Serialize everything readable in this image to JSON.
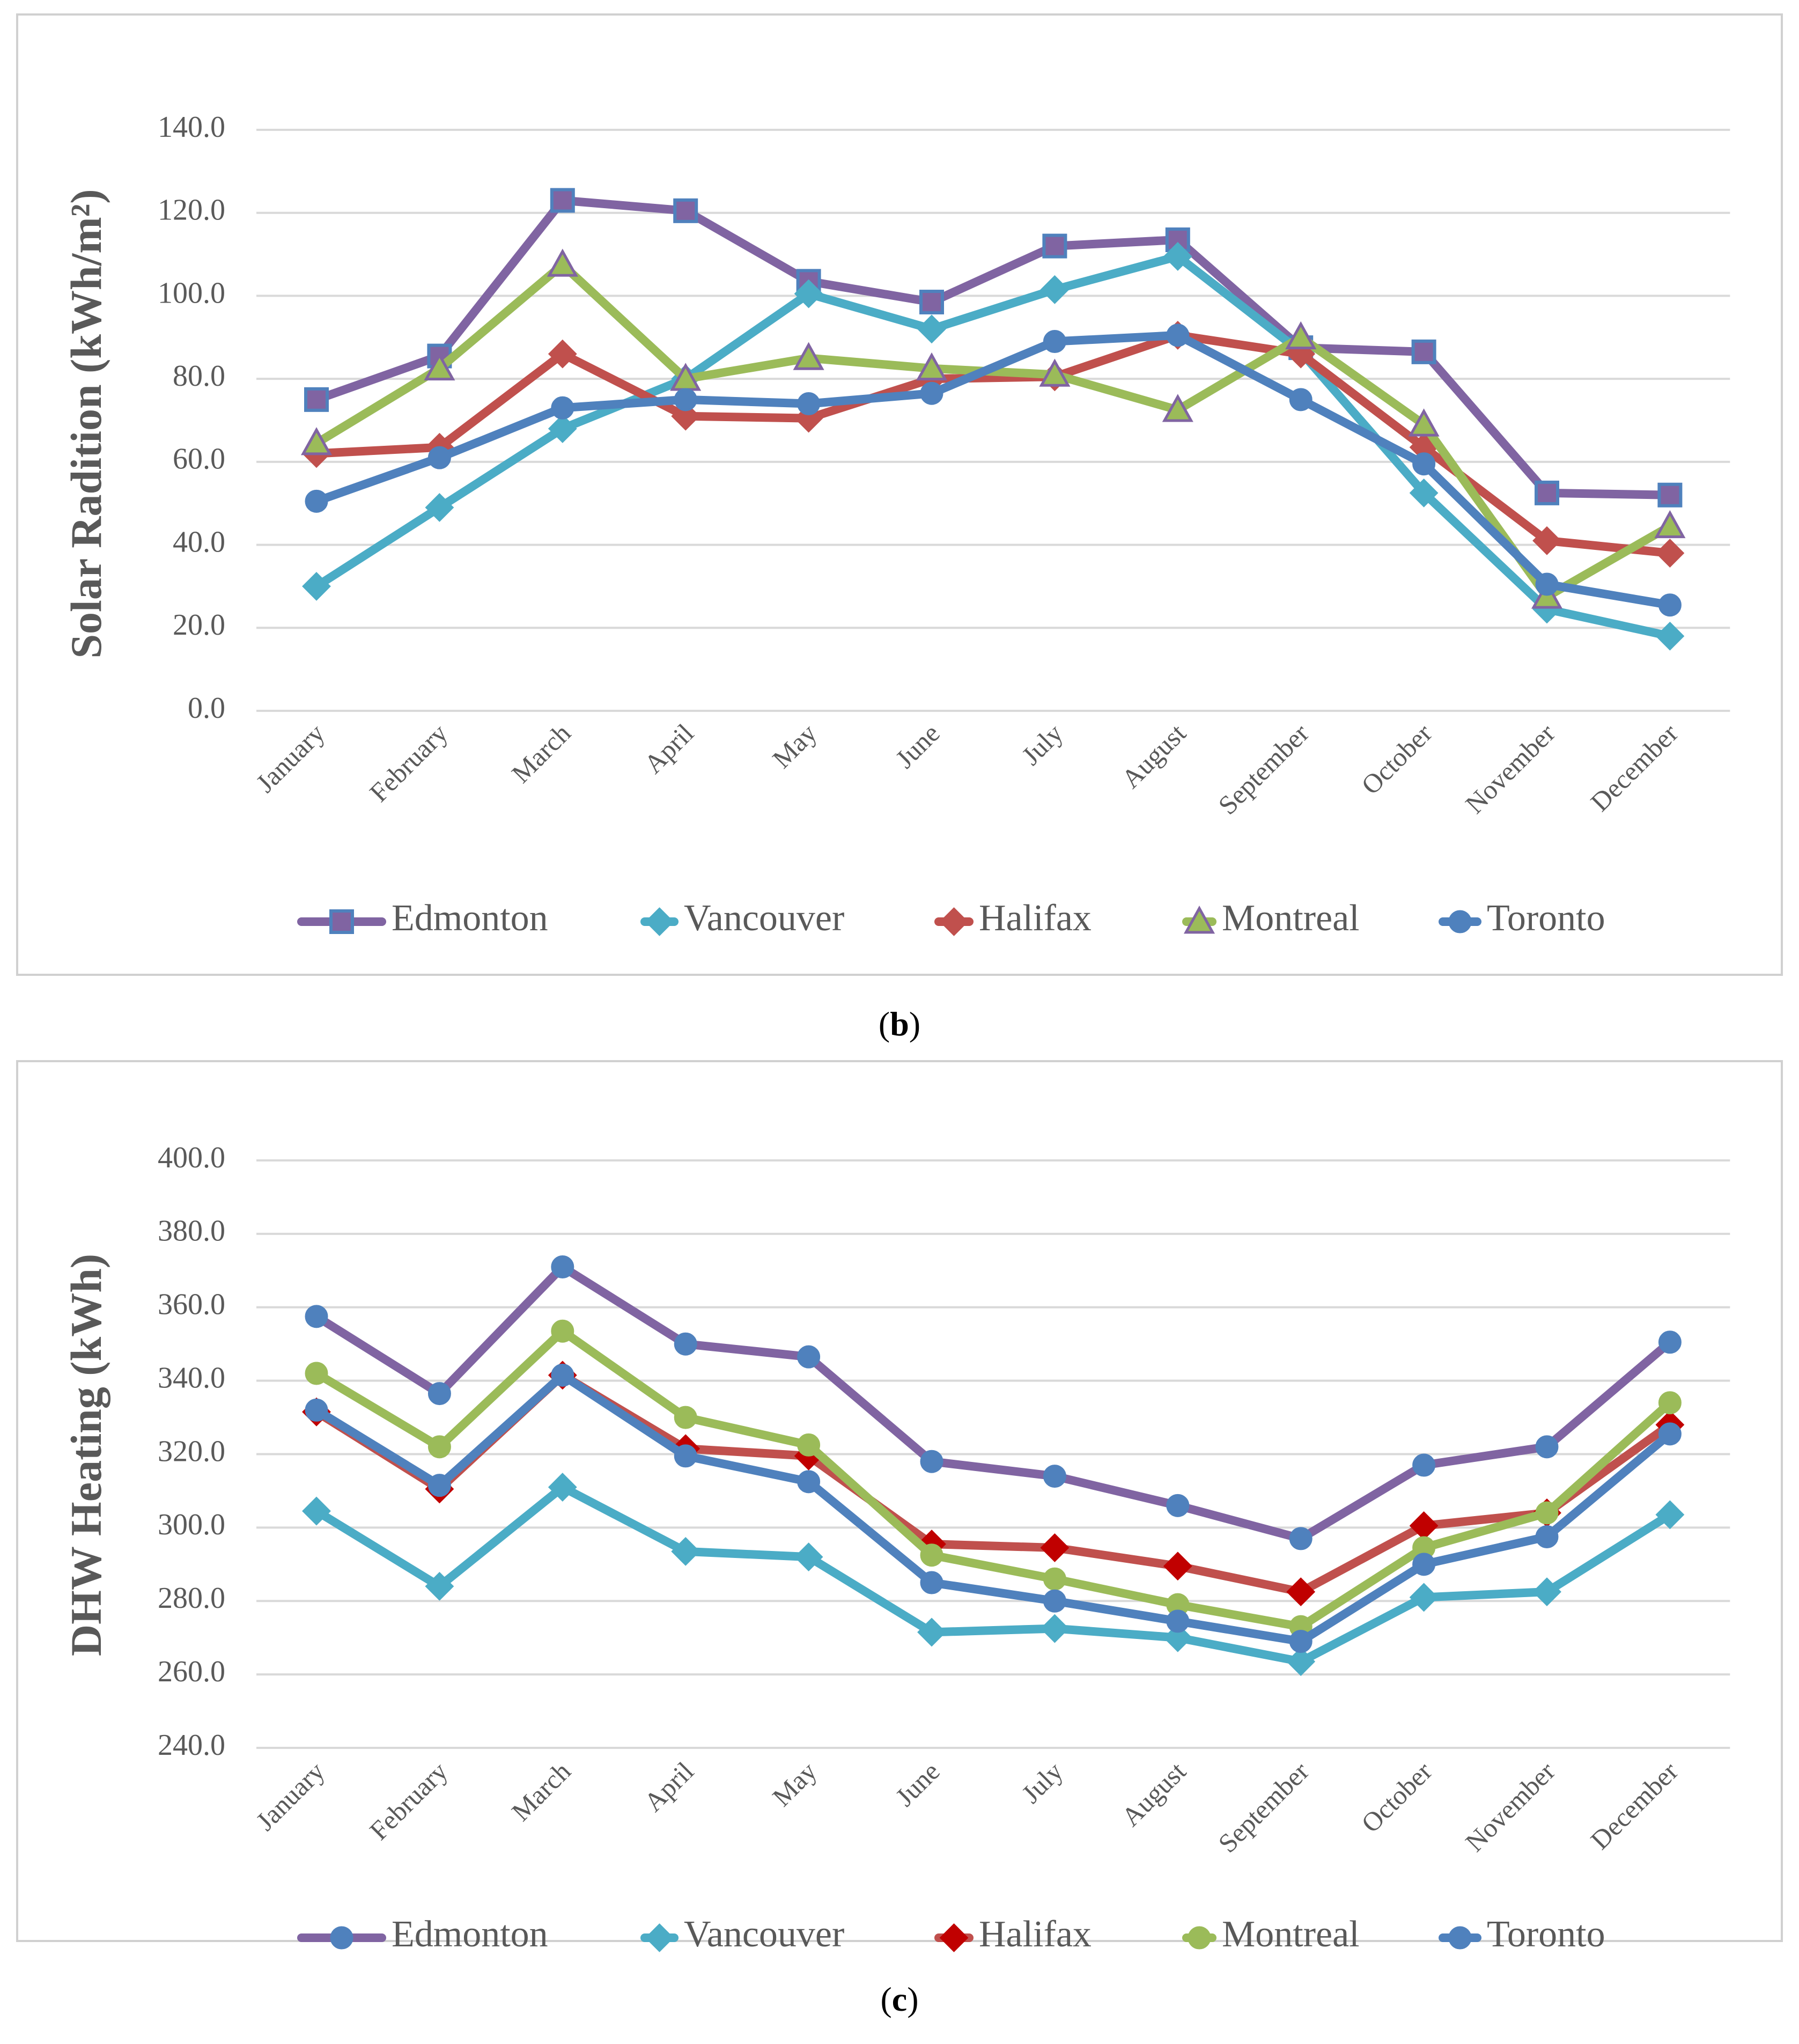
{
  "captions": [
    "(b)",
    "(c)"
  ],
  "caption_parts": [
    {
      "open": "(",
      "letter": "b",
      "close": ")"
    },
    {
      "open": "(",
      "letter": "c",
      "close": ")"
    }
  ],
  "series_colors": {
    "Edmonton": "#8064A2",
    "Vancouver": "#4BACC6",
    "Halifax": "#C0504D",
    "Montreal": "#9BBB59",
    "Toronto": "#4F81BD"
  },
  "chart_data": [
    {
      "type": "line",
      "title": "",
      "xlabel": "",
      "ylabel": "Solar Radition (kWh/m²)",
      "ylim": [
        0,
        140
      ],
      "ytick_step": 20,
      "ytick_format": 1,
      "grid": true,
      "legend_position": "bottom",
      "categories": [
        "January",
        "February",
        "March",
        "April",
        "May",
        "June",
        "July",
        "August",
        "September",
        "October",
        "November",
        "December"
      ],
      "series": [
        {
          "name": "Edmonton",
          "marker": "square",
          "color": "#8064A2",
          "markerFill": "#8064A2",
          "markerStroke": "#4F81BD",
          "values": [
            75.0,
            85.5,
            123.0,
            120.5,
            103.5,
            98.5,
            112.0,
            113.5,
            87.5,
            86.5,
            52.5,
            52.0
          ]
        },
        {
          "name": "Vancouver",
          "marker": "diamond",
          "color": "#4BACC6",
          "markerFill": "#4BACC6",
          "markerStroke": "#4BACC6",
          "values": [
            30.0,
            49.0,
            68.0,
            80.0,
            100.5,
            92.0,
            101.5,
            109.5,
            86.5,
            52.5,
            24.5,
            18.0
          ]
        },
        {
          "name": "Halifax",
          "marker": "diamond",
          "color": "#C0504D",
          "markerFill": "#C0504D",
          "markerStroke": "#C0504D",
          "values": [
            62.0,
            63.5,
            86.0,
            71.0,
            70.5,
            80.0,
            80.5,
            90.5,
            86.0,
            63.5,
            41.0,
            38.0
          ]
        },
        {
          "name": "Montreal",
          "marker": "triangle",
          "color": "#9BBB59",
          "markerFill": "#9BBB59",
          "markerStroke": "#8064A2",
          "values": [
            64.5,
            82.5,
            107.5,
            80.0,
            85.0,
            82.5,
            81.0,
            72.5,
            90.0,
            69.0,
            27.5,
            44.5
          ]
        },
        {
          "name": "Toronto",
          "marker": "circle",
          "color": "#4F81BD",
          "markerFill": "#4F81BD",
          "markerStroke": "#4F81BD",
          "values": [
            50.5,
            61.0,
            73.0,
            75.0,
            74.0,
            76.5,
            89.0,
            90.5,
            75.0,
            59.5,
            30.5,
            25.5
          ]
        }
      ]
    },
    {
      "type": "line",
      "title": "",
      "xlabel": "",
      "ylabel": "DHW Heating (kWh)",
      "ylim": [
        240,
        400
      ],
      "ytick_step": 20,
      "ytick_format": 1,
      "grid": true,
      "legend_position": "bottom",
      "categories": [
        "January",
        "February",
        "March",
        "April",
        "May",
        "June",
        "July",
        "August",
        "September",
        "October",
        "November",
        "December"
      ],
      "series": [
        {
          "name": "Edmonton",
          "marker": "circle",
          "color": "#8064A2",
          "markerFill": "#4F81BD",
          "markerStroke": "#4F81BD",
          "values": [
            357.5,
            336.5,
            371.0,
            350.0,
            346.5,
            318.0,
            314.0,
            306.0,
            297.0,
            317.0,
            322.0,
            350.5
          ]
        },
        {
          "name": "Vancouver",
          "marker": "diamond",
          "color": "#4BACC6",
          "markerFill": "#4BACC6",
          "markerStroke": "#4BACC6",
          "values": [
            304.5,
            284.0,
            311.0,
            293.5,
            292.0,
            271.5,
            272.5,
            270.0,
            263.5,
            281.0,
            282.5,
            303.5
          ]
        },
        {
          "name": "Halifax",
          "marker": "diamond",
          "color": "#C0504D",
          "markerFill": "#C00000",
          "markerStroke": "#C00000",
          "values": [
            331.5,
            310.5,
            341.5,
            321.5,
            319.5,
            295.5,
            294.5,
            289.5,
            282.5,
            300.5,
            304.0,
            328.0
          ]
        },
        {
          "name": "Montreal",
          "marker": "circle",
          "color": "#9BBB59",
          "markerFill": "#9BBB59",
          "markerStroke": "#9BBB59",
          "values": [
            342.0,
            322.0,
            353.5,
            330.0,
            322.5,
            292.5,
            286.0,
            279.0,
            273.0,
            294.5,
            304.0,
            334.0
          ]
        },
        {
          "name": "Toronto",
          "marker": "circle",
          "color": "#4F81BD",
          "markerFill": "#4F81BD",
          "markerStroke": "#4F81BD",
          "values": [
            332.0,
            311.5,
            341.5,
            319.5,
            312.5,
            285.0,
            280.0,
            274.5,
            269.0,
            290.0,
            297.5,
            325.5
          ]
        }
      ]
    }
  ]
}
